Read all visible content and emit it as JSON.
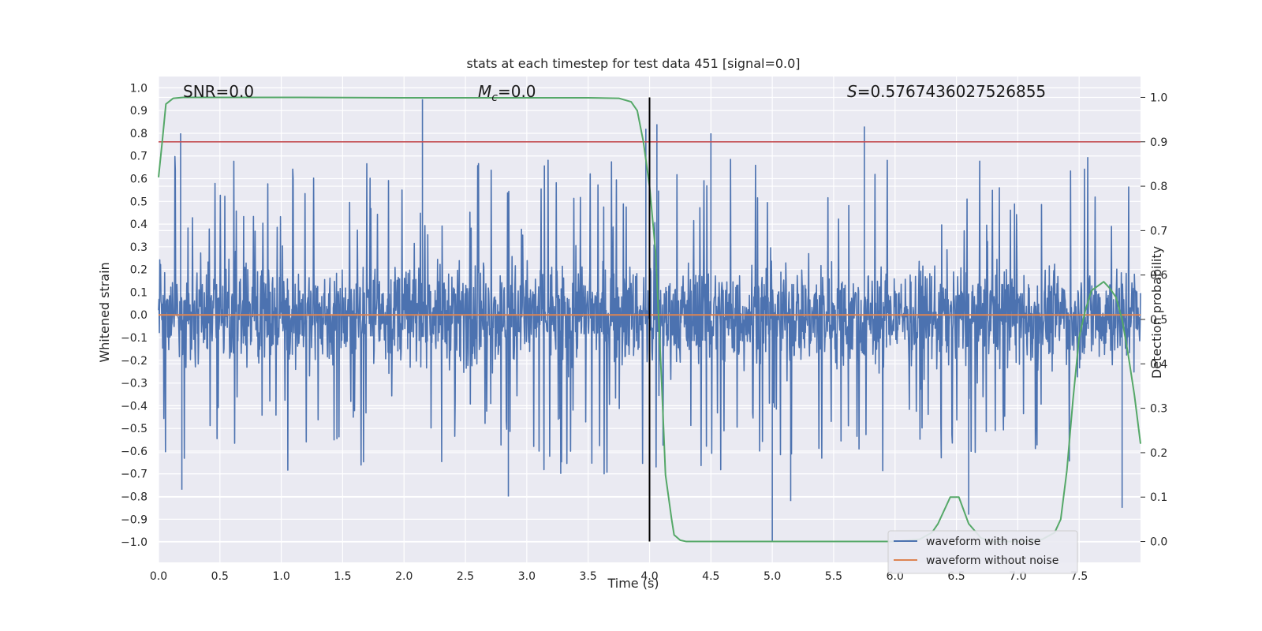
{
  "chart_data": {
    "type": "line",
    "title": "stats at each timestep for test data 451 [signal=0.0]",
    "xlabel": "Time (s)",
    "ylabel_left": "Whitened strain",
    "ylabel_right": "Detection probability",
    "xlim": [
      0.0,
      8.0
    ],
    "ylim_left": [
      -1.09,
      1.05
    ],
    "ylim_right": [
      -0.047,
      1.047
    ],
    "x_ticks": [
      "0.0",
      "0.5",
      "1.0",
      "1.5",
      "2.0",
      "2.5",
      "3.0",
      "3.5",
      "4.0",
      "4.5",
      "5.0",
      "5.5",
      "6.0",
      "6.5",
      "7.0",
      "7.5"
    ],
    "y_ticks_left": [
      "1.0",
      "0.9",
      "0.8",
      "0.7",
      "0.6",
      "0.5",
      "0.4",
      "0.3",
      "0.2",
      "0.1",
      "0.0",
      "-0.1",
      "-0.2",
      "-0.3",
      "-0.4",
      "-0.5",
      "-0.6",
      "-0.7",
      "-0.8",
      "-0.9",
      "-1.0"
    ],
    "y_ticks_right": [
      "1.0",
      "0.9",
      "0.8",
      "0.7",
      "0.6",
      "0.5",
      "0.4",
      "0.3",
      "0.2",
      "0.1",
      "0.0"
    ],
    "grid": true,
    "legend_position": "lower-right",
    "annotations": {
      "snr": "SNR=0.0",
      "mc_symbol": "M",
      "mc_sub": "c",
      "mc_value": "=0.0",
      "s_symbol": "S",
      "s_value": "=0.5767436027526855"
    },
    "series": [
      {
        "name": "waveform with noise",
        "color": "#4c72b0",
        "axis": "left",
        "description_values": "dense noise, core band about -0.22 to 0.2, spikes up to 0.95 and down to -1.0",
        "peaks": [
          {
            "x": 0.18,
            "y": 0.8
          },
          {
            "x": 0.19,
            "y": -0.77
          },
          {
            "x": 2.15,
            "y": 0.95
          },
          {
            "x": 2.85,
            "y": -0.8
          },
          {
            "x": 3.97,
            "y": 0.82
          },
          {
            "x": 4.06,
            "y": 0.84
          },
          {
            "x": 4.5,
            "y": 0.8
          },
          {
            "x": 5.0,
            "y": -1.0
          },
          {
            "x": 5.15,
            "y": -0.82
          },
          {
            "x": 5.75,
            "y": 0.83
          },
          {
            "x": 6.6,
            "y": -0.88
          },
          {
            "x": 7.85,
            "y": -0.85
          }
        ]
      },
      {
        "name": "waveform without noise",
        "color": "#dd8452",
        "axis": "left",
        "x": [
          0.0,
          8.0
        ],
        "y": [
          0.0,
          0.0
        ]
      },
      {
        "name": "",
        "color": "#55a868",
        "axis": "right",
        "x": [
          0.0,
          0.03,
          0.06,
          0.12,
          0.2,
          1.0,
          2.0,
          3.0,
          3.5,
          3.75,
          3.85,
          3.9,
          3.95,
          4.0,
          4.05,
          4.1,
          4.13,
          4.18,
          4.2,
          4.25,
          4.3,
          4.5,
          5.0,
          5.5,
          6.0,
          6.2,
          6.3,
          6.35,
          6.45,
          6.52,
          6.6,
          6.7,
          6.8,
          7.0,
          7.2,
          7.3,
          7.35,
          7.4,
          7.45,
          7.5,
          7.55,
          7.6,
          7.65,
          7.7,
          7.75,
          7.8,
          7.85,
          7.9,
          7.95,
          8.0
        ],
        "y": [
          0.82,
          0.9,
          0.985,
          0.998,
          1.0,
          1.0,
          0.999,
          0.999,
          0.999,
          0.998,
          0.99,
          0.97,
          0.9,
          0.8,
          0.65,
          0.35,
          0.15,
          0.05,
          0.015,
          0.003,
          0.0,
          0.0,
          0.0,
          0.0,
          0.0,
          0.005,
          0.02,
          0.04,
          0.1,
          0.1,
          0.04,
          0.008,
          0.0,
          0.0,
          0.005,
          0.02,
          0.05,
          0.16,
          0.32,
          0.46,
          0.52,
          0.565,
          0.575,
          0.585,
          0.57,
          0.55,
          0.5,
          0.42,
          0.33,
          0.22
        ]
      }
    ],
    "hlines": [
      {
        "axis": "right",
        "y": 0.9,
        "color": "#c44e52"
      }
    ],
    "vlines": [
      {
        "x": 4.0,
        "color": "#000000"
      }
    ]
  }
}
